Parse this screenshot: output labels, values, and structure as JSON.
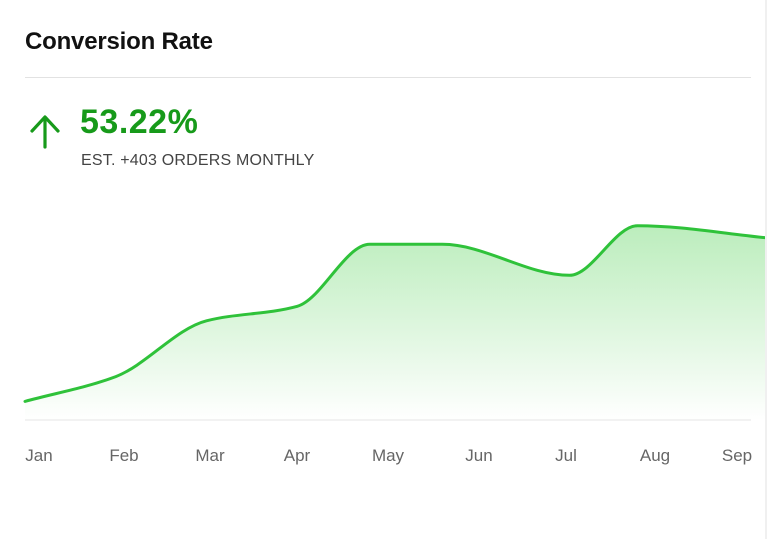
{
  "card": {
    "title": "Conversion Rate",
    "metric_value": "53.22%",
    "metric_subtitle": "EST. +403 ORDERS MONTHLY",
    "trend_icon": "arrow-up-icon",
    "colors": {
      "accent": "#179a1a",
      "line": "#2fc23a",
      "fill_top": "#b8ecb9",
      "fill_bottom": "#ffffff"
    }
  },
  "chart_data": {
    "type": "area",
    "categories": [
      "Jan",
      "Feb",
      "Mar",
      "Apr",
      "May",
      "Jun",
      "Jul",
      "Aug",
      "Sep"
    ],
    "x": [
      0,
      1,
      2,
      3,
      3.8,
      4.6,
      6,
      6.75,
      8.2
    ],
    "values": [
      0.5,
      6.5,
      20,
      23.5,
      38.5,
      38.5,
      31,
      43,
      40
    ],
    "ylim": [
      -4,
      48
    ],
    "grid": false,
    "legend": "none"
  }
}
